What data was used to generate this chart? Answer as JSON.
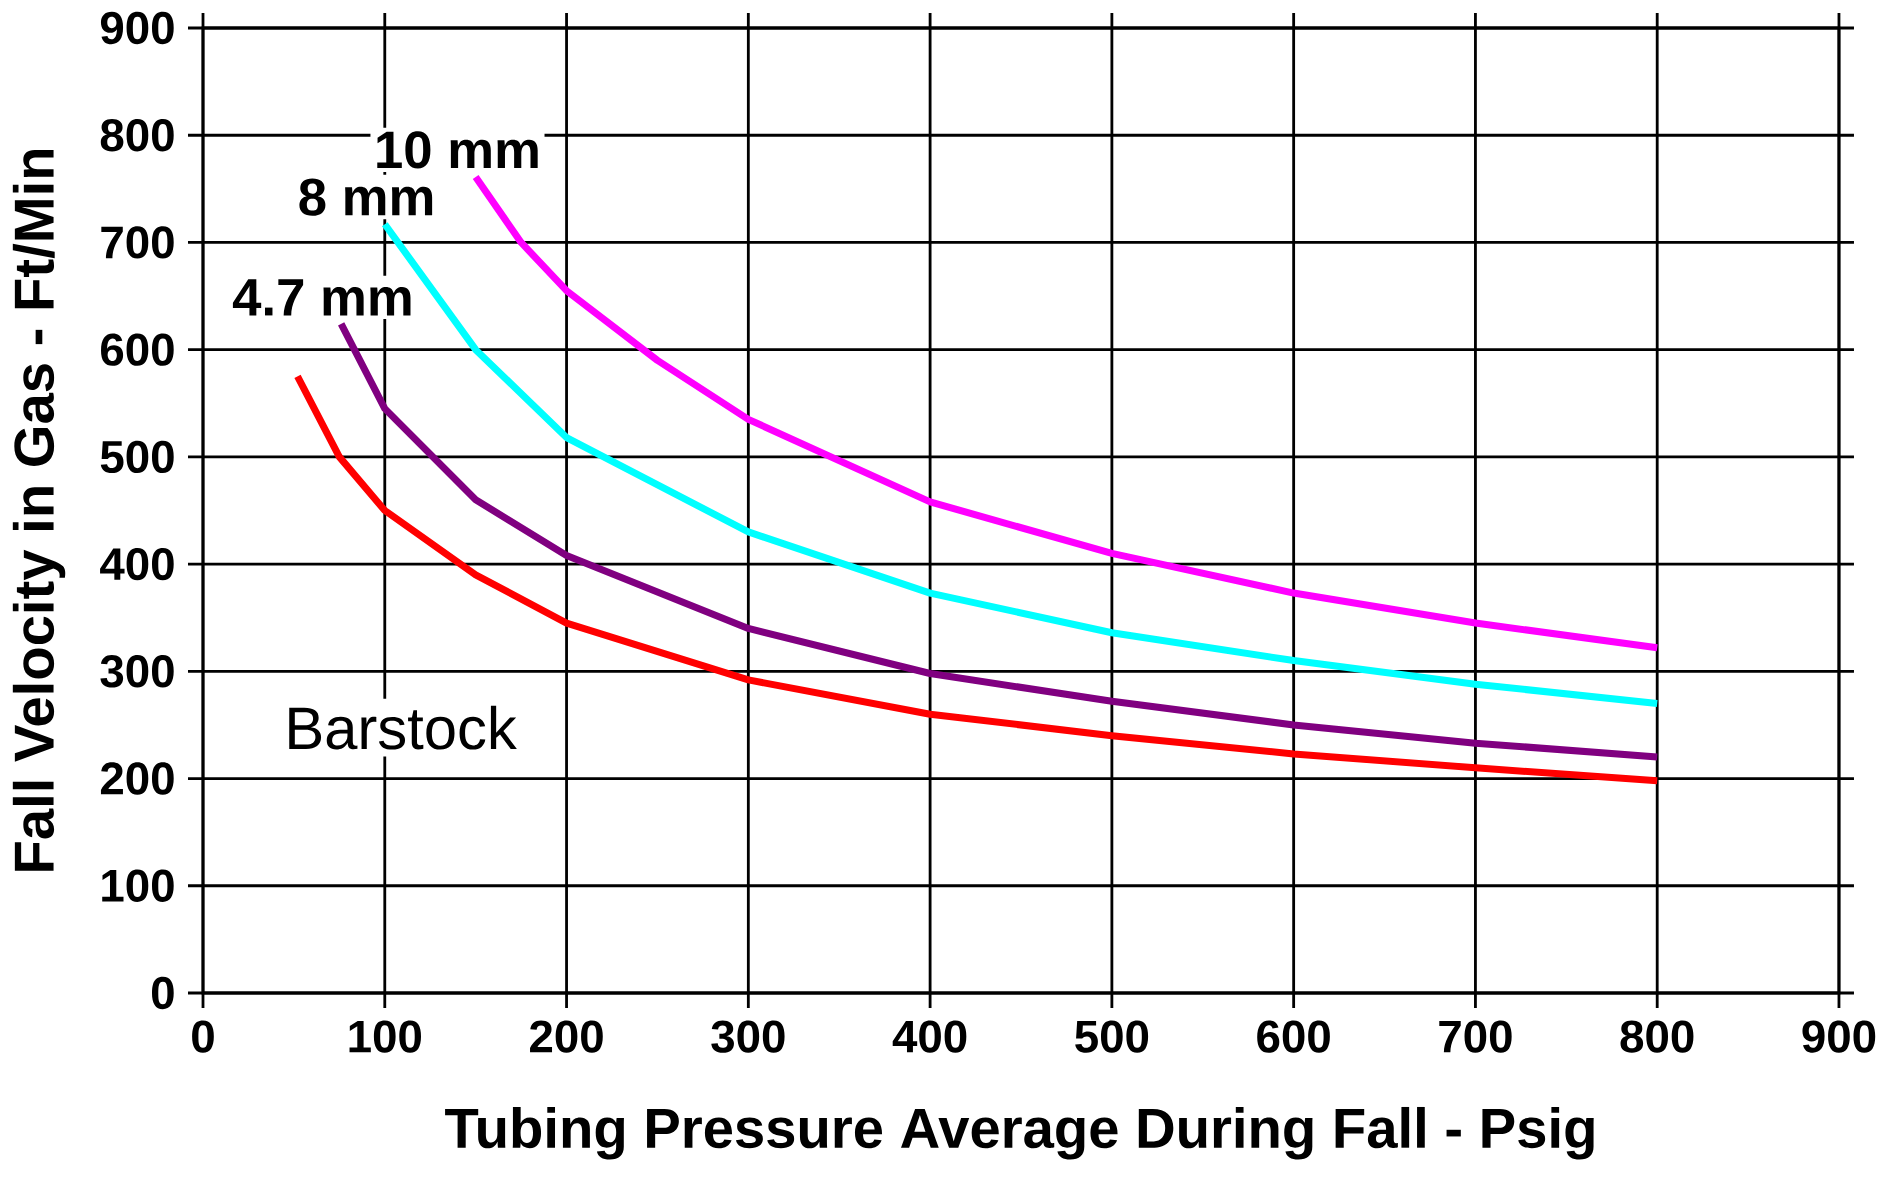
{
  "chart_data": {
    "type": "line",
    "xlabel": "Tubing Pressure Average During Fall - Psig",
    "ylabel": "Fall Velocity in Gas - Ft/Min",
    "xlim": [
      0,
      900
    ],
    "xticks": [
      0,
      100,
      200,
      300,
      400,
      500,
      600,
      700,
      800,
      900
    ],
    "ylim": [
      0,
      900
    ],
    "yticks": [
      0,
      100,
      200,
      300,
      400,
      500,
      600,
      700,
      800,
      900
    ],
    "grid": true,
    "marker": "none",
    "line_style": "solid",
    "annotations": [
      "Barstock"
    ],
    "series": [
      {
        "color": "#ff0000",
        "x": [
          52,
          75,
          100,
          150,
          200,
          300,
          400,
          500,
          600,
          700,
          800
        ],
        "values": [
          575,
          500,
          450,
          390,
          345,
          292,
          260,
          240,
          223,
          210,
          198
        ]
      },
      {
        "name": "4.7 mm",
        "color": "#800080",
        "x": [
          76,
          100,
          150,
          200,
          300,
          400,
          500,
          600,
          700,
          800
        ],
        "values": [
          624,
          545,
          460,
          408,
          340,
          298,
          272,
          250,
          233,
          220
        ]
      },
      {
        "name": "8 mm",
        "color": "#00ffff",
        "x": [
          100,
          150,
          200,
          300,
          400,
          500,
          600,
          700,
          800
        ],
        "values": [
          717,
          600,
          518,
          430,
          373,
          336,
          310,
          288,
          270
        ]
      },
      {
        "name": "10 mm",
        "color": "#ff00ff",
        "x": [
          150,
          175,
          200,
          250,
          300,
          400,
          500,
          600,
          700,
          800
        ],
        "values": [
          761,
          700,
          655,
          590,
          535,
          458,
          410,
          373,
          345,
          322
        ]
      }
    ]
  }
}
